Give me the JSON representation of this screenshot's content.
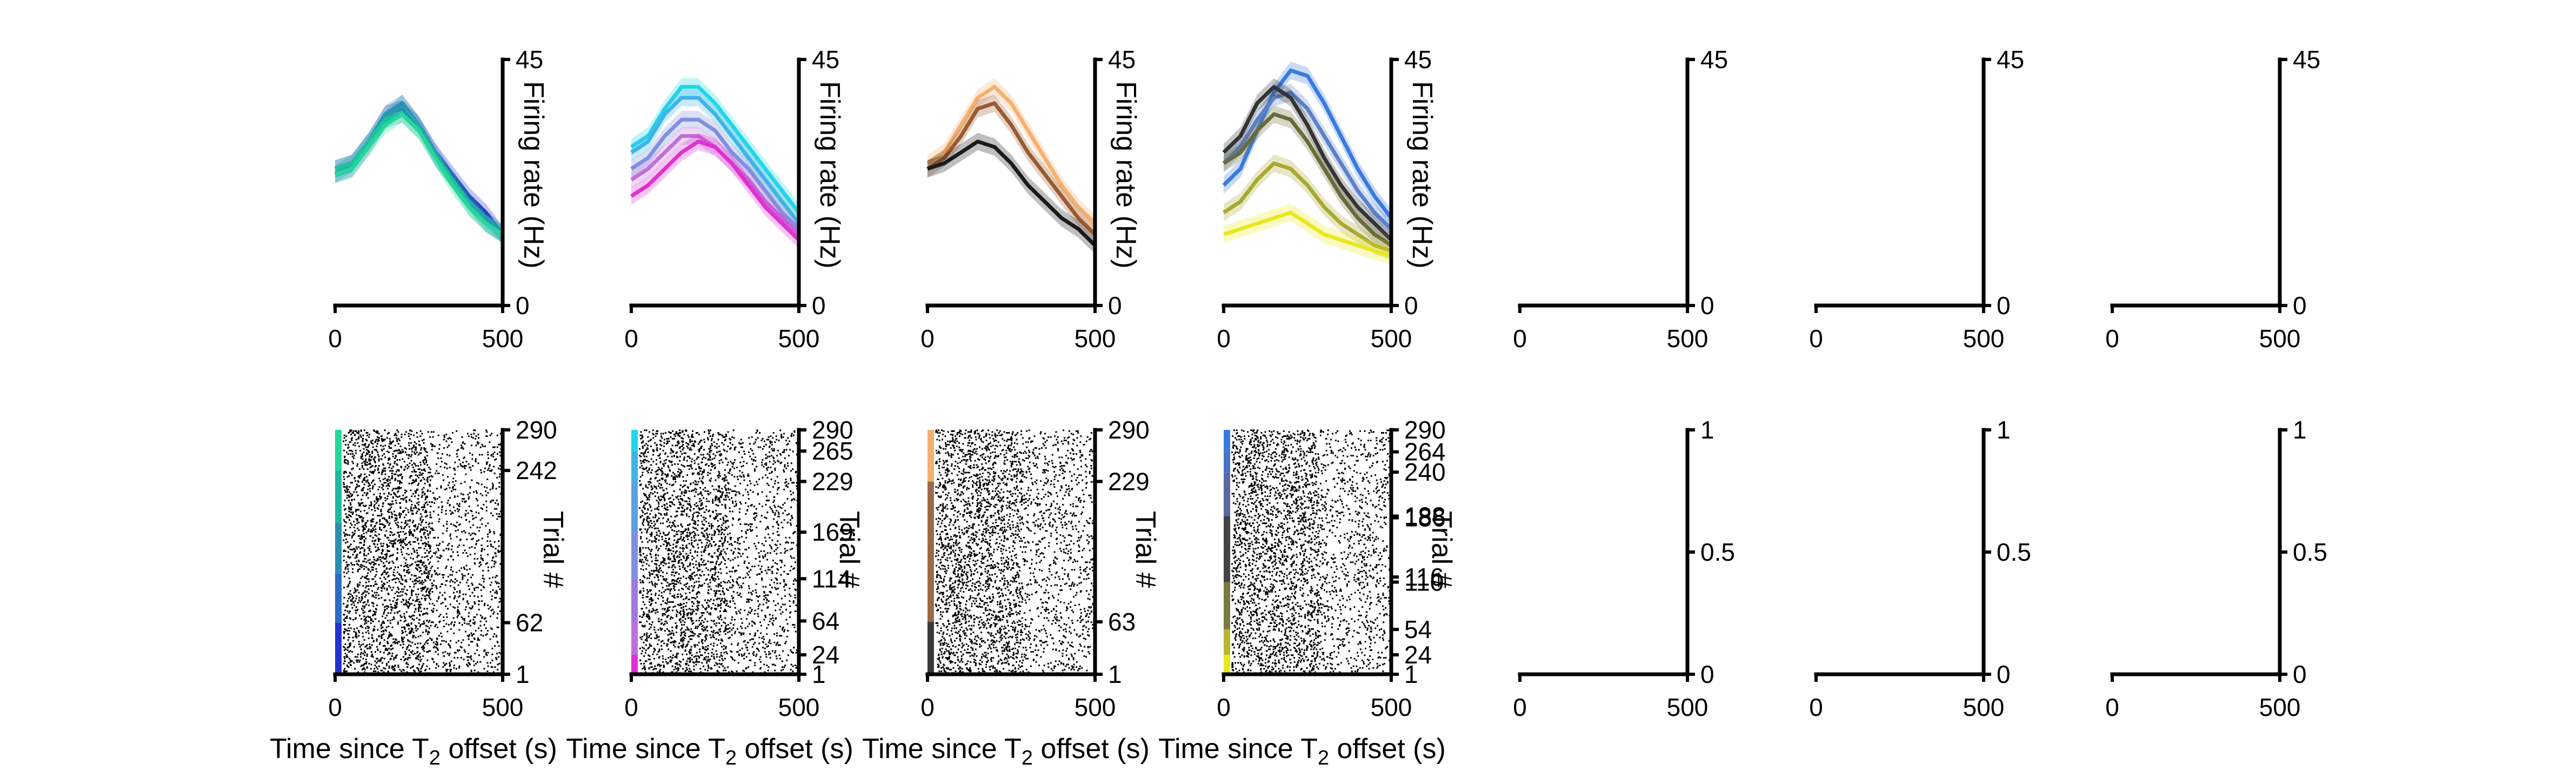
{
  "chart_data": {
    "type": "line",
    "xlabel": "Time since T2 offset (s)",
    "panel_ylabels": {
      "psth": "Firing rate (Hz)",
      "raster": "Trial #"
    },
    "psth_panels": [
      {
        "xlim": [
          0,
          500
        ],
        "ylim": [
          0,
          45
        ],
        "xticks": [
          "0",
          "500"
        ],
        "yticks": [
          "0",
          "45"
        ],
        "ylabel": "Firing rate (Hz)",
        "series": [
          {
            "color": "#2233cc",
            "x": [
              0,
              50,
              100,
              150,
              200,
              250,
              300,
              350,
              400,
              450,
              500
            ],
            "y": [
              25,
              26,
              30,
              35,
              36,
              33,
              28,
              24,
              20,
              17,
              13
            ]
          },
          {
            "color": "#2e6bc4",
            "x": [
              0,
              50,
              100,
              150,
              200,
              250,
              300,
              350,
              400,
              450,
              500
            ],
            "y": [
              24,
              25,
              29,
              34,
              37,
              33,
              28,
              23,
              19,
              16,
              13
            ]
          },
          {
            "color": "#2a8fb0",
            "x": [
              0,
              50,
              100,
              150,
              200,
              250,
              300,
              350,
              400,
              450,
              500
            ],
            "y": [
              24,
              26,
              30,
              35,
              37,
              33,
              27,
              23,
              19,
              15,
              13
            ]
          },
          {
            "color": "#1fb8a0",
            "x": [
              0,
              50,
              100,
              150,
              200,
              250,
              300,
              350,
              400,
              450,
              500
            ],
            "y": [
              25,
              26,
              30,
              34,
              35,
              32,
              27,
              23,
              18,
              15,
              13
            ]
          },
          {
            "color": "#22d89a",
            "x": [
              0,
              50,
              100,
              150,
              200,
              250,
              300,
              350,
              400,
              450,
              500
            ],
            "y": [
              24,
              25,
              29,
              33,
              35,
              32,
              27,
              22,
              18,
              15,
              13
            ]
          }
        ]
      },
      {
        "xlim": [
          0,
          500
        ],
        "ylim": [
          0,
          45
        ],
        "xticks": [
          "0",
          "500"
        ],
        "yticks": [
          "0",
          "45"
        ],
        "ylabel": "Firing rate (Hz)",
        "series": [
          {
            "color": "#22d6e8",
            "x": [
              0,
              50,
              100,
              150,
              200,
              250,
              300,
              350,
              400,
              450,
              500
            ],
            "y": [
              29,
              31,
              36,
              40,
              40,
              37,
              33,
              29,
              25,
              21,
              17
            ]
          },
          {
            "color": "#3fb4e8",
            "x": [
              0,
              50,
              100,
              150,
              200,
              250,
              300,
              350,
              400,
              450,
              500
            ],
            "y": [
              28,
              30,
              35,
              38,
              38,
              35,
              31,
              27,
              23,
              19,
              15
            ]
          },
          {
            "color": "#7f8fe0",
            "x": [
              0,
              50,
              100,
              150,
              200,
              250,
              300,
              350,
              400,
              450,
              500
            ],
            "y": [
              25,
              27,
              31,
              34,
              34,
              32,
              28,
              25,
              21,
              17,
              14
            ]
          },
          {
            "color": "#c070d8",
            "x": [
              0,
              50,
              100,
              150,
              200,
              250,
              300,
              350,
              400,
              450,
              500
            ],
            "y": [
              23,
              25,
              28,
              31,
              31,
              29,
              26,
              23,
              19,
              16,
              13
            ]
          },
          {
            "color": "#e030d0",
            "x": [
              0,
              50,
              100,
              150,
              200,
              250,
              300,
              350,
              400,
              450,
              500
            ],
            "y": [
              20,
              22,
              25,
              28,
              30,
              29,
              26,
              22,
              18,
              15,
              12
            ]
          }
        ]
      },
      {
        "xlim": [
          0,
          500
        ],
        "ylim": [
          0,
          45
        ],
        "xticks": [
          "0",
          "500"
        ],
        "yticks": [
          "0",
          "45"
        ],
        "ylabel": "Firing rate (Hz)",
        "series": [
          {
            "color": "#f5b070",
            "x": [
              0,
              50,
              100,
              150,
              200,
              250,
              300,
              350,
              400,
              450,
              500
            ],
            "y": [
              26,
              28,
              33,
              38,
              40,
              37,
              32,
              27,
              22,
              18,
              15
            ]
          },
          {
            "color": "#9a5a30",
            "x": [
              0,
              50,
              100,
              150,
              200,
              250,
              300,
              350,
              400,
              450,
              500
            ],
            "y": [
              25,
              27,
              31,
              36,
              37,
              33,
              28,
              24,
              20,
              16,
              13
            ]
          },
          {
            "color": "#1a1a1a",
            "x": [
              0,
              50,
              100,
              150,
              200,
              250,
              300,
              350,
              400,
              450,
              500
            ],
            "y": [
              25,
              26,
              28,
              30,
              29,
              26,
              22,
              19,
              16,
              14,
              11
            ]
          }
        ]
      },
      {
        "xlim": [
          0,
          500
        ],
        "ylim": [
          0,
          45
        ],
        "xticks": [
          "0",
          "500"
        ],
        "yticks": [
          "0",
          "45"
        ],
        "ylabel": "Firing rate (Hz)",
        "series": [
          {
            "color": "#3a7ae0",
            "x": [
              0,
              50,
              100,
              150,
              200,
              250,
              300,
              350,
              400,
              450,
              500
            ],
            "y": [
              22,
              25,
              32,
              39,
              43,
              42,
              37,
              31,
              25,
              20,
              16
            ]
          },
          {
            "color": "#5a80c8",
            "x": [
              0,
              50,
              100,
              150,
              200,
              250,
              300,
              350,
              400,
              450,
              500
            ],
            "y": [
              26,
              29,
              34,
              38,
              39,
              36,
              31,
              26,
              21,
              17,
              14
            ]
          },
          {
            "color": "#333333",
            "x": [
              0,
              50,
              100,
              150,
              200,
              250,
              300,
              350,
              400,
              450,
              500
            ],
            "y": [
              28,
              31,
              37,
              40,
              38,
              33,
              27,
              22,
              18,
              15,
              12
            ]
          },
          {
            "color": "#6a6a3a",
            "x": [
              0,
              50,
              100,
              150,
              200,
              250,
              300,
              350,
              400,
              450,
              500
            ],
            "y": [
              26,
              28,
              32,
              35,
              34,
              30,
              25,
              20,
              16,
              13,
              11
            ]
          },
          {
            "color": "#a8a830",
            "x": [
              0,
              50,
              100,
              150,
              200,
              250,
              300,
              350,
              400,
              450,
              500
            ],
            "y": [
              17,
              19,
              23,
              26,
              25,
              22,
              18,
              15,
              13,
              11,
              10
            ]
          },
          {
            "color": "#e8e820",
            "x": [
              0,
              50,
              100,
              150,
              200,
              250,
              300,
              350,
              400,
              450,
              500
            ],
            "y": [
              13,
              14,
              15,
              16,
              17,
              15,
              13,
              12,
              11,
              10,
              9
            ]
          }
        ]
      },
      {
        "xlim": [
          0,
          500
        ],
        "ylim": [
          0,
          45
        ],
        "xticks": [
          "0",
          "500"
        ],
        "yticks": [
          "0",
          "45"
        ],
        "ylabel": "",
        "series": []
      },
      {
        "xlim": [
          0,
          500
        ],
        "ylim": [
          0,
          45
        ],
        "xticks": [
          "0",
          "500"
        ],
        "yticks": [
          "0",
          "45"
        ],
        "ylabel": "",
        "series": []
      },
      {
        "xlim": [
          0,
          500
        ],
        "ylim": [
          0,
          45
        ],
        "xticks": [
          "0",
          "500"
        ],
        "yticks": [
          "0",
          "45"
        ],
        "ylabel": "",
        "series": []
      }
    ],
    "raster_panels": [
      {
        "xlim": [
          0,
          500
        ],
        "ylim": [
          1,
          290
        ],
        "xticks": [
          "0",
          "500"
        ],
        "yticks": [
          1,
          62,
          242,
          290
        ],
        "ylabel": "Trial #",
        "xlabel": "Time since T2 offset (s)",
        "condition_bars": [
          {
            "from": 1,
            "to": 62,
            "color": "#2233cc"
          },
          {
            "from": 62,
            "to": 120,
            "color": "#2e6bc4"
          },
          {
            "from": 120,
            "to": 180,
            "color": "#2a8fb0"
          },
          {
            "from": 180,
            "to": 242,
            "color": "#1fb8a0"
          },
          {
            "from": 242,
            "to": 290,
            "color": "#22d89a"
          }
        ]
      },
      {
        "xlim": [
          0,
          500
        ],
        "ylim": [
          1,
          290
        ],
        "xticks": [
          "0",
          "500"
        ],
        "yticks": [
          1,
          24,
          64,
          114,
          169,
          229,
          265,
          290
        ],
        "ylabel": "Trial #",
        "xlabel": "Time since T2 offset (s)",
        "condition_bars": [
          {
            "from": 1,
            "to": 24,
            "color": "#e030d0"
          },
          {
            "from": 24,
            "to": 64,
            "color": "#c070d8"
          },
          {
            "from": 64,
            "to": 114,
            "color": "#a078e0"
          },
          {
            "from": 114,
            "to": 169,
            "color": "#7f8fe0"
          },
          {
            "from": 169,
            "to": 229,
            "color": "#5aa0e0"
          },
          {
            "from": 229,
            "to": 265,
            "color": "#3fb4e8"
          },
          {
            "from": 265,
            "to": 290,
            "color": "#22d6e8"
          }
        ]
      },
      {
        "xlim": [
          0,
          500
        ],
        "ylim": [
          1,
          290
        ],
        "xticks": [
          "0",
          "500"
        ],
        "yticks": [
          1,
          63,
          229,
          290
        ],
        "ylabel": "Trial #",
        "xlabel": "Time since T2 offset (s)",
        "condition_bars": [
          {
            "from": 1,
            "to": 63,
            "color": "#3a3a3a"
          },
          {
            "from": 63,
            "to": 229,
            "color": "#9a6a48"
          },
          {
            "from": 229,
            "to": 290,
            "color": "#f0b070"
          }
        ]
      },
      {
        "xlim": [
          0,
          500
        ],
        "ylim": [
          1,
          290
        ],
        "xticks": [
          "0",
          "500"
        ],
        "yticks": [
          1,
          24,
          54,
          110,
          116,
          186,
          188,
          240,
          264,
          290
        ],
        "ylabel": "Trial #",
        "xlabel": "Time since T2 offset (s)",
        "condition_bars": [
          {
            "from": 1,
            "to": 24,
            "color": "#e8e820"
          },
          {
            "from": 24,
            "to": 54,
            "color": "#b8b830"
          },
          {
            "from": 54,
            "to": 110,
            "color": "#7a7a40"
          },
          {
            "from": 110,
            "to": 188,
            "color": "#444444"
          },
          {
            "from": 188,
            "to": 240,
            "color": "#5a6aa0"
          },
          {
            "from": 240,
            "to": 264,
            "color": "#4a72c8"
          },
          {
            "from": 264,
            "to": 290,
            "color": "#3a7ae0"
          }
        ]
      },
      {
        "xlim": [
          0,
          500
        ],
        "ylim": [
          0,
          1
        ],
        "xticks": [
          "0",
          "500"
        ],
        "yticks": [
          "0",
          "0.5",
          "1"
        ],
        "ylabel": "",
        "xlabel": "",
        "condition_bars": []
      },
      {
        "xlim": [
          0,
          500
        ],
        "ylim": [
          0,
          1
        ],
        "xticks": [
          "0",
          "500"
        ],
        "yticks": [
          "0",
          "0.5",
          "1"
        ],
        "ylabel": "",
        "xlabel": "",
        "condition_bars": []
      },
      {
        "xlim": [
          0,
          500
        ],
        "ylim": [
          0,
          1
        ],
        "xticks": [
          "0",
          "500"
        ],
        "yticks": [
          "0",
          "0.5",
          "1"
        ],
        "ylabel": "",
        "xlabel": "",
        "condition_bars": []
      }
    ]
  }
}
